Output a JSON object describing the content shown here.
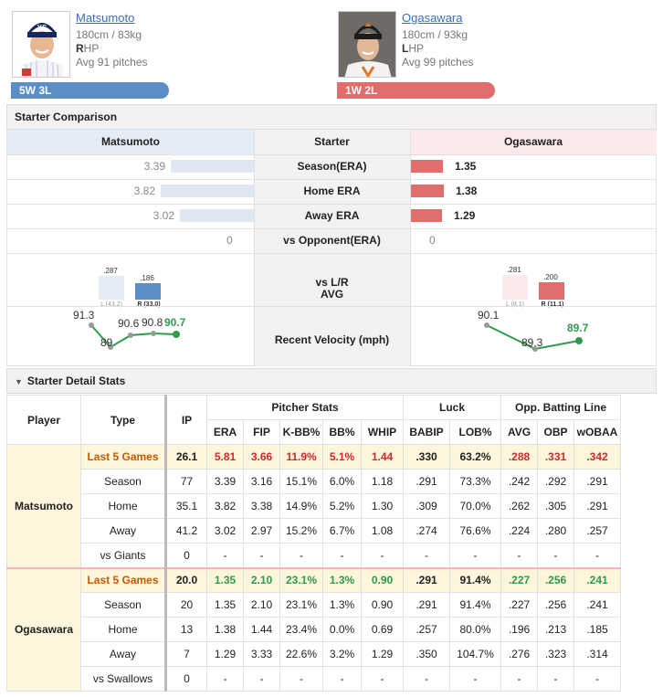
{
  "home": {
    "name": "Matsumoto",
    "height_weight": "180cm / 83kg",
    "hand_letter": "R",
    "hand_rest": "HP",
    "avg_pitches": "Avg 91 pitches",
    "record": "5W 3L",
    "color": "#5b8ec7"
  },
  "away": {
    "name": "Ogasawara",
    "height_weight": "180cm / 93kg",
    "hand_letter": "L",
    "hand_rest": "HP",
    "avg_pitches": "Avg 99 pitches",
    "record": "1W 2L",
    "color": "#e06c6c"
  },
  "comparison": {
    "title": "Starter Comparison",
    "col_left": "Matsumoto",
    "col_mid": "Starter",
    "col_right": "Ogasawara",
    "rows": [
      {
        "label": "Season(ERA)",
        "left": "3.39",
        "right": "1.35",
        "left_num": 3.39,
        "right_num": 1.35
      },
      {
        "label": "Home ERA",
        "left": "3.82",
        "right": "1.38",
        "left_num": 3.82,
        "right_num": 1.38
      },
      {
        "label": "Away ERA",
        "left": "3.02",
        "right": "1.29",
        "left_num": 3.02,
        "right_num": 1.29
      },
      {
        "label": "vs Opponent(ERA)",
        "left": "0",
        "right": "0",
        "left_num": 0,
        "right_num": 0
      }
    ],
    "lr_label_1": "vs L/R",
    "lr_label_2": "AVG",
    "lr_left": {
      "l_avg": ".287",
      "l_sub": "L (43.2)",
      "r_avg": ".186",
      "r_sub": "R (33.0)"
    },
    "lr_right": {
      "l_avg": ".281",
      "l_sub": "L (8.1)",
      "r_avg": ".200",
      "r_sub": "R (11.1)"
    },
    "velo_label": "Recent Velocity (mph)",
    "velo_left": [
      "91.3",
      "89",
      "90.6",
      "90.8",
      "90.7"
    ],
    "velo_right": [
      "90.1",
      "89.3",
      "89.7"
    ]
  },
  "detail": {
    "title": "Starter Detail Stats",
    "h_player": "Player",
    "h_type": "Type",
    "h_ip": "IP",
    "h_pitcher": "Pitcher Stats",
    "h_luck": "Luck",
    "h_opp": "Opp. Batting Line",
    "cols": [
      "ERA",
      "FIP",
      "K-BB%",
      "BB%",
      "WHIP",
      "BABIP",
      "LOB%",
      "AVG",
      "OBP",
      "wOBAA"
    ],
    "matsumoto": {
      "name": "Matsumoto",
      "rows": [
        {
          "type": "Last 5 Games",
          "vals": [
            "26.1",
            "5.81",
            "3.66",
            "11.9%",
            "5.1%",
            "1.44",
            ".330",
            "63.2%",
            ".288",
            ".331",
            ".342"
          ]
        },
        {
          "type": "Season",
          "vals": [
            "77",
            "3.39",
            "3.16",
            "15.1%",
            "6.0%",
            "1.18",
            ".291",
            "73.3%",
            ".242",
            ".292",
            ".291"
          ]
        },
        {
          "type": "Home",
          "vals": [
            "35.1",
            "3.82",
            "3.38",
            "14.9%",
            "5.2%",
            "1.30",
            ".309",
            "70.0%",
            ".262",
            ".305",
            ".291"
          ]
        },
        {
          "type": "Away",
          "vals": [
            "41.2",
            "3.02",
            "2.97",
            "15.2%",
            "6.7%",
            "1.08",
            ".274",
            "76.6%",
            ".224",
            ".280",
            ".257"
          ]
        },
        {
          "type": "vs Giants",
          "vals": [
            "0",
            "-",
            "-",
            "-",
            "-",
            "-",
            "-",
            "-",
            "-",
            "-",
            "-"
          ]
        }
      ]
    },
    "ogasawara": {
      "name": "Ogasawara",
      "rows": [
        {
          "type": "Last 5 Games",
          "vals": [
            "20.0",
            "1.35",
            "2.10",
            "23.1%",
            "1.3%",
            "0.90",
            ".291",
            "91.4%",
            ".227",
            ".256",
            ".241"
          ]
        },
        {
          "type": "Season",
          "vals": [
            "20",
            "1.35",
            "2.10",
            "23.1%",
            "1.3%",
            "0.90",
            ".291",
            "91.4%",
            ".227",
            ".256",
            ".241"
          ]
        },
        {
          "type": "Home",
          "vals": [
            "13",
            "1.38",
            "1.44",
            "23.4%",
            "0.0%",
            "0.69",
            ".257",
            "80.0%",
            ".196",
            ".213",
            ".185"
          ]
        },
        {
          "type": "Away",
          "vals": [
            "7",
            "1.29",
            "3.33",
            "22.6%",
            "3.2%",
            "1.29",
            ".350",
            "104.7%",
            ".276",
            ".323",
            ".314"
          ]
        },
        {
          "type": "vs Swallows",
          "vals": [
            "0",
            "-",
            "-",
            "-",
            "-",
            "-",
            "-",
            "-",
            "-",
            "-",
            "-"
          ]
        }
      ]
    }
  }
}
